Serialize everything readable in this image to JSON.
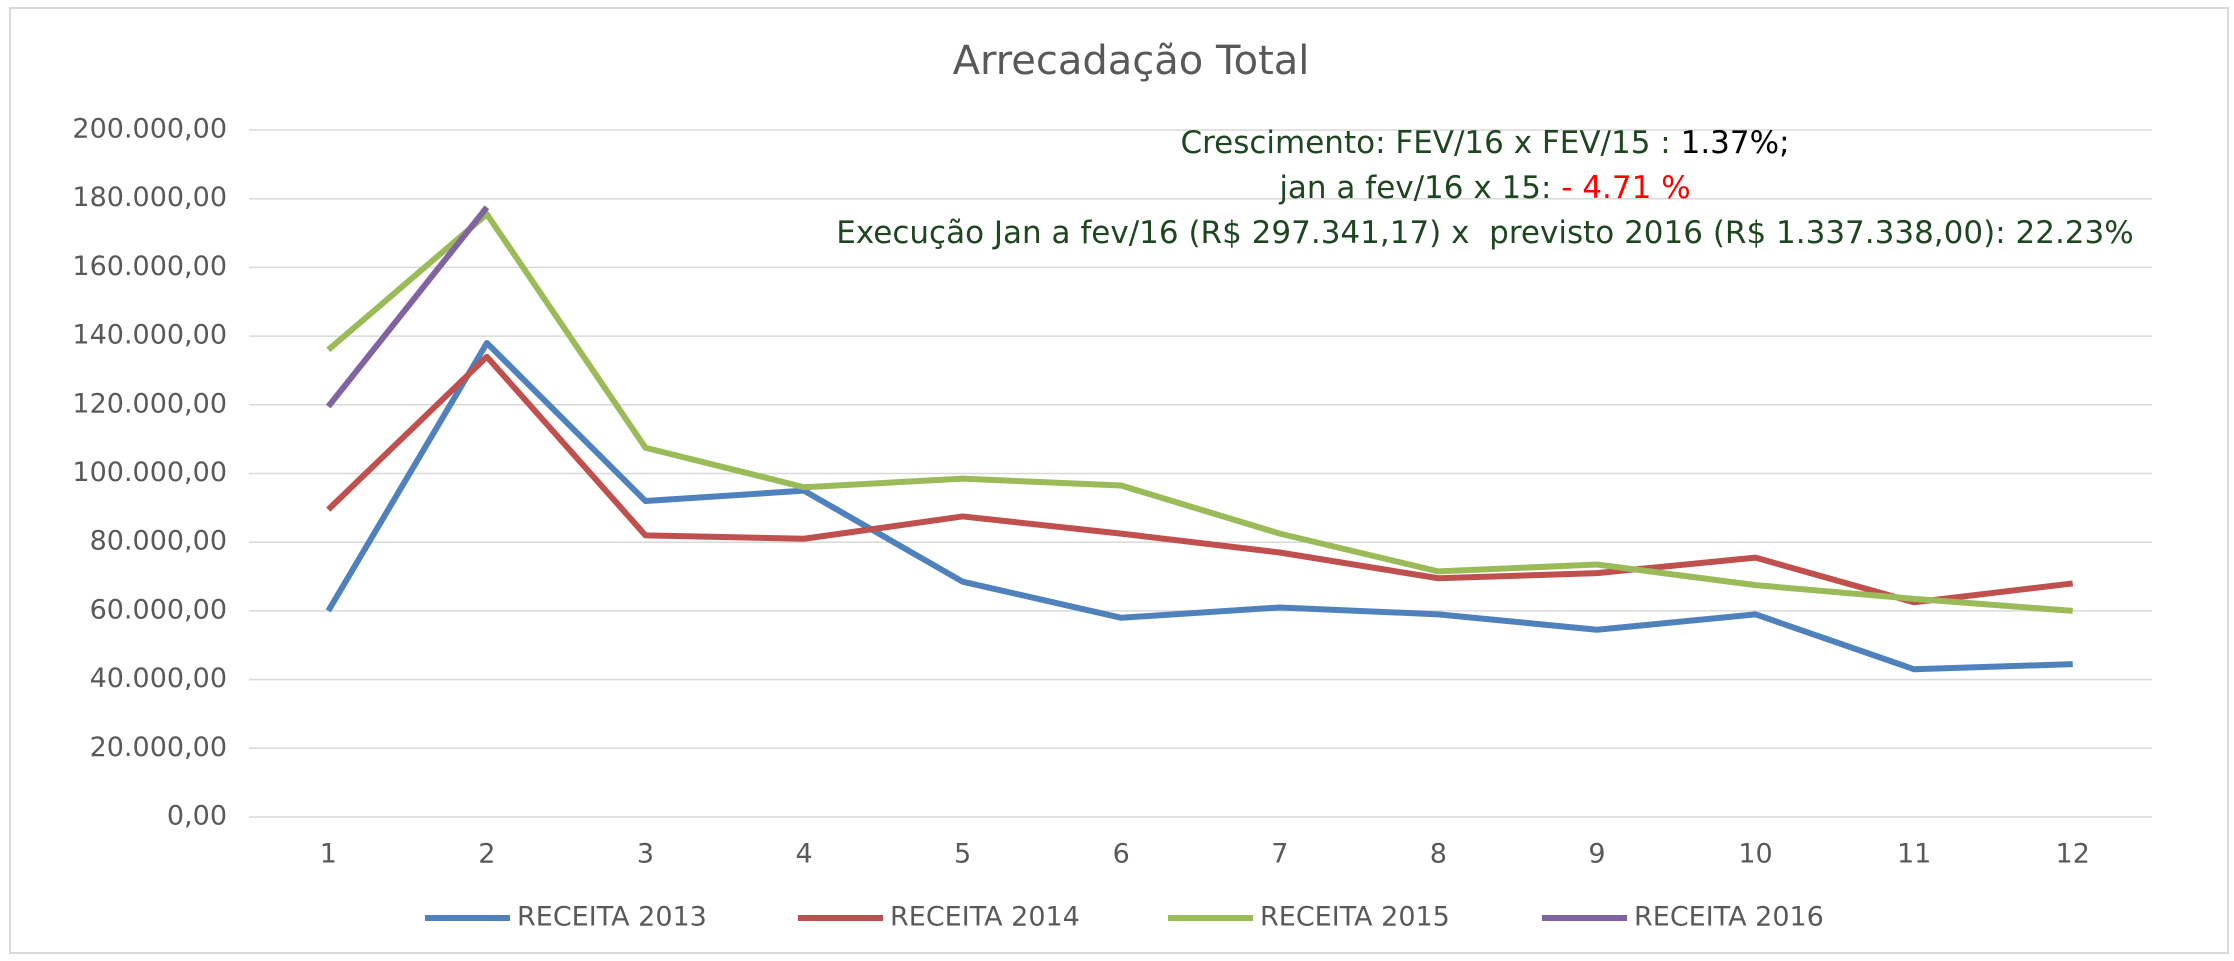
{
  "chart_data": {
    "type": "line",
    "title": "Arrecadação Total",
    "annotation": [
      [
        {
          "text": "Crescimento: FEV/16 x FEV/15 : ",
          "color": "#1e4620"
        },
        {
          "text": "1.37%;",
          "color": "#000000"
        }
      ],
      [
        {
          "text": "jan a fev/16 x 15: ",
          "color": "#1e4620"
        },
        {
          "text": "- 4.71 %",
          "color": "#ff0000"
        }
      ],
      [
        {
          "text": "Execução Jan a fev/16 (R$ 297.341,17) x  previsto 2016 (R$ 1.337.338,00): 22.23%",
          "color": "#1e4620"
        }
      ]
    ],
    "categories": [
      "1",
      "2",
      "3",
      "4",
      "5",
      "6",
      "7",
      "8",
      "9",
      "10",
      "11",
      "12"
    ],
    "series": [
      {
        "name": "RECEITA 2013",
        "color": "#4f81bd",
        "values": [
          60000,
          138000,
          92000,
          95000,
          68500,
          58000,
          61000,
          59000,
          54500,
          59000,
          43000,
          44500
        ]
      },
      {
        "name": "RECEITA 2014",
        "color": "#c0504d",
        "values": [
          89500,
          134000,
          82000,
          81000,
          87500,
          82500,
          77000,
          69500,
          71000,
          75500,
          62500,
          68000
        ]
      },
      {
        "name": "RECEITA 2015",
        "color": "#9bbb59",
        "values": [
          136000,
          175500,
          107500,
          96000,
          98500,
          96500,
          82500,
          71500,
          73500,
          67500,
          63500,
          60000
        ]
      },
      {
        "name": "RECEITA 2016",
        "color": "#8064a2",
        "values": [
          119500,
          177500,
          null,
          null,
          null,
          null,
          null,
          null,
          null,
          null,
          null,
          null
        ]
      }
    ],
    "ylim": [
      0,
      200000
    ],
    "yticks": [
      {
        "value": 0,
        "label": "0,00"
      },
      {
        "value": 20000,
        "label": "20.000,00"
      },
      {
        "value": 40000,
        "label": "40.000,00"
      },
      {
        "value": 60000,
        "label": "60.000,00"
      },
      {
        "value": 80000,
        "label": "80.000,00"
      },
      {
        "value": 100000,
        "label": "100.000,00"
      },
      {
        "value": 120000,
        "label": "120.000,00"
      },
      {
        "value": 140000,
        "label": "140.000,00"
      },
      {
        "value": 160000,
        "label": "160.000,00"
      },
      {
        "value": 180000,
        "label": "180.000,00"
      },
      {
        "value": 200000,
        "label": "200.000,00"
      }
    ],
    "grid": true,
    "legend": "bottom"
  }
}
